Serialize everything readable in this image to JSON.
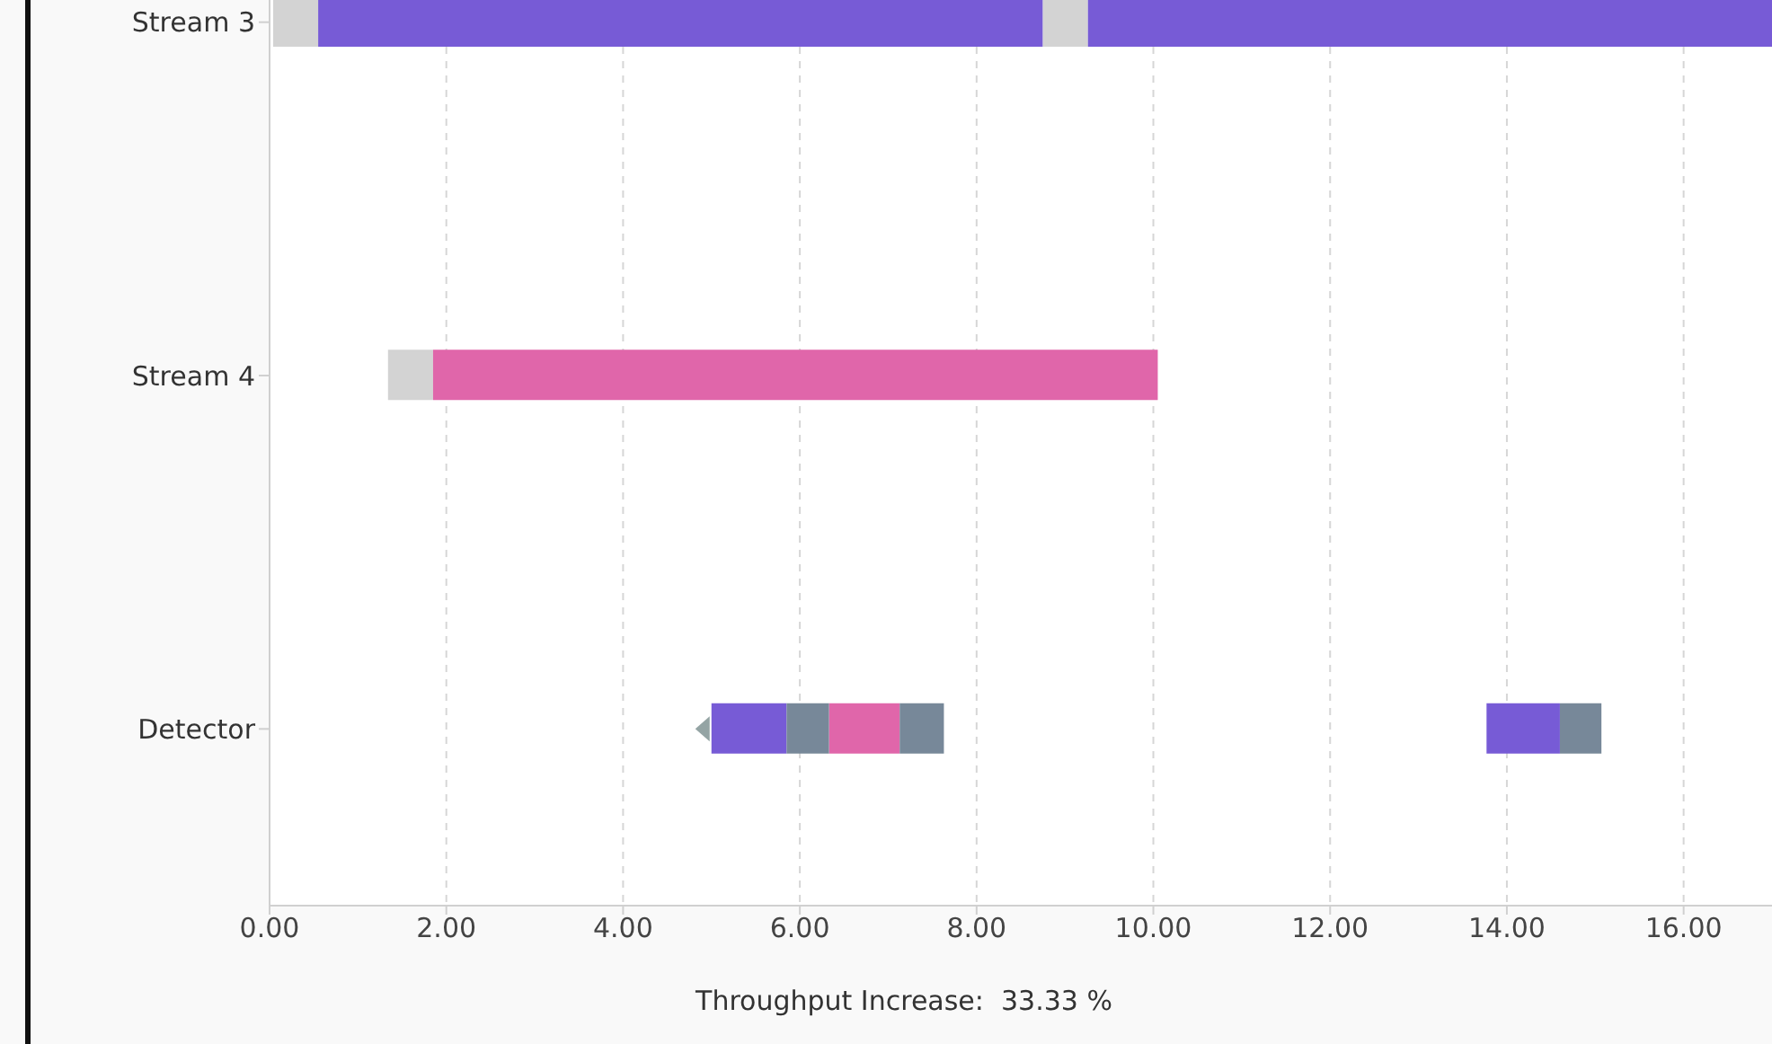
{
  "chart_data": {
    "type": "bar",
    "orientation": "horizontal",
    "categories": [
      "Stream 3",
      "Stream 4",
      "Detector"
    ],
    "series": [
      {
        "color": "#d3d3d3",
        "values": [
          0.51,
          0.51,
          null
        ],
        "base": [
          0.04,
          1.34,
          null
        ]
      },
      {
        "color": "#775bd6",
        "values": [
          8.2,
          null,
          0.85
        ],
        "base": [
          0.55,
          null,
          5.0
        ]
      },
      {
        "color": "#d3d3d3",
        "values": [
          0.51,
          null,
          null
        ],
        "base": [
          8.75,
          null,
          null
        ]
      },
      {
        "color": "#775bd6",
        "values": [
          7.74,
          null,
          0.83
        ],
        "base": [
          9.26,
          null,
          13.77
        ]
      },
      {
        "color": "#e066aa",
        "values": [
          null,
          8.2,
          0.8
        ],
        "base": [
          null,
          1.85,
          6.33
        ]
      },
      {
        "color": "#778899",
        "values": [
          null,
          null,
          0.48
        ],
        "base": [
          null,
          null,
          5.85
        ]
      },
      {
        "color": "#778899",
        "values": [
          null,
          null,
          0.5
        ],
        "base": [
          null,
          null,
          7.13
        ]
      },
      {
        "color": "#778899",
        "values": [
          null,
          null,
          0.47
        ],
        "base": [
          null,
          null,
          14.6
        ]
      }
    ],
    "xlim": [
      0,
      17
    ],
    "xticks": [
      {
        "value": 0,
        "label": "0.00"
      },
      {
        "value": 2,
        "label": "2.00"
      },
      {
        "value": 4,
        "label": "4.00"
      },
      {
        "value": 6,
        "label": "6.00"
      },
      {
        "value": 8,
        "label": "8.00"
      },
      {
        "value": 10,
        "label": "10.00"
      },
      {
        "value": 12,
        "label": "12.00"
      },
      {
        "value": 14,
        "label": "14.00"
      },
      {
        "value": 16,
        "label": "16.00"
      }
    ],
    "grid": "x",
    "annotations": [
      "Throughput Increase:  33.33 %"
    ]
  }
}
